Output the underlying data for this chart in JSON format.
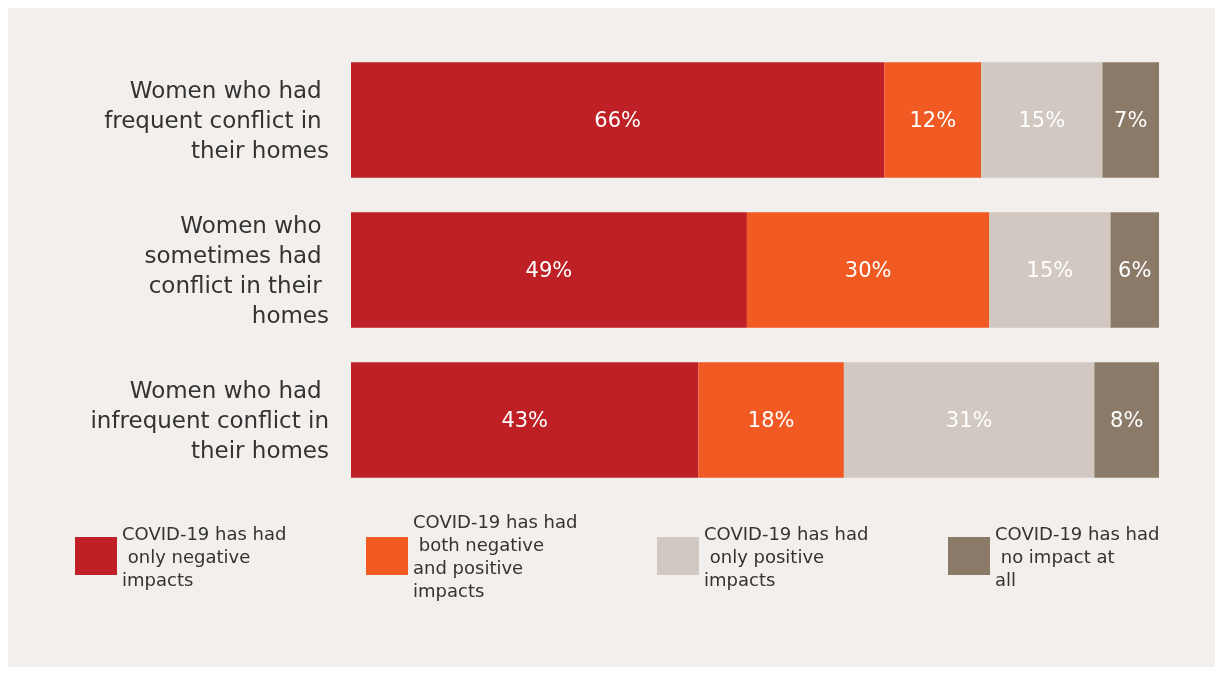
{
  "chart_data": {
    "type": "bar",
    "orientation": "horizontal",
    "stacked": true,
    "categories": [
      "Women who had frequent conflict in their homes",
      "Women who sometimes had conflict in their homes",
      "Women who had infrequent conflict in their homes"
    ],
    "series": [
      {
        "name": "COVID-19 has had only negative impacts",
        "color": "#be2026",
        "values": [
          66,
          49,
          43
        ],
        "value_labels": [
          "66%",
          "49%",
          "43%"
        ]
      },
      {
        "name": "COVID-19 has had both negative and positive impacts",
        "color": "#f15a22",
        "values": [
          12,
          30,
          18
        ],
        "value_labels": [
          "12%",
          "30%",
          "18%"
        ]
      },
      {
        "name": "COVID-19 has had only positive impacts",
        "color": "#d1c9c1",
        "values": [
          15,
          15,
          31
        ],
        "value_labels": [
          "15%",
          "15%",
          "31%"
        ]
      },
      {
        "name": "COVID-19 has had no impact at all",
        "color": "#8b7a68",
        "values": [
          7,
          6,
          8
        ],
        "value_labels": [
          "7%",
          "6%",
          "8%"
        ]
      }
    ],
    "xlim": [
      0,
      100
    ],
    "tick_labels": "y",
    "legend": "bottom"
  }
}
